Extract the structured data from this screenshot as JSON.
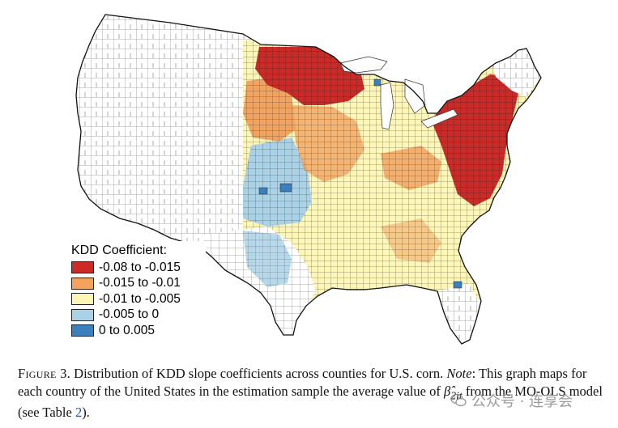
{
  "map": {
    "legend": {
      "title": "KDD Coefficient:",
      "items": [
        {
          "label": "-0.08 to -0.015",
          "color": "#cc2a26"
        },
        {
          "label": "-0.015 to -0.01",
          "color": "#f4a35e"
        },
        {
          "label": "-0.01 to -0.005",
          "color": "#fdf6b5"
        },
        {
          "label": "-0.005 to 0",
          "color": "#a9d2e7"
        },
        {
          "label": "0 to 0.005",
          "color": "#3c7fbd"
        }
      ]
    }
  },
  "caption": {
    "figure_label": "Figure 3.",
    "text_1": "Distribution of KDD slope coefficients across counties for U.S. corn.",
    "note_label": "Note",
    "text_2": ": This graph maps for each country of the United States in the estimation sample the average value of",
    "math_symbol": "β̂",
    "math_subscript": "2it",
    "text_3": "from the MO-OLS model (see Table",
    "table_ref": "2",
    "text_4": ")."
  },
  "watermark": {
    "text": "公众号 · 连享会"
  }
}
